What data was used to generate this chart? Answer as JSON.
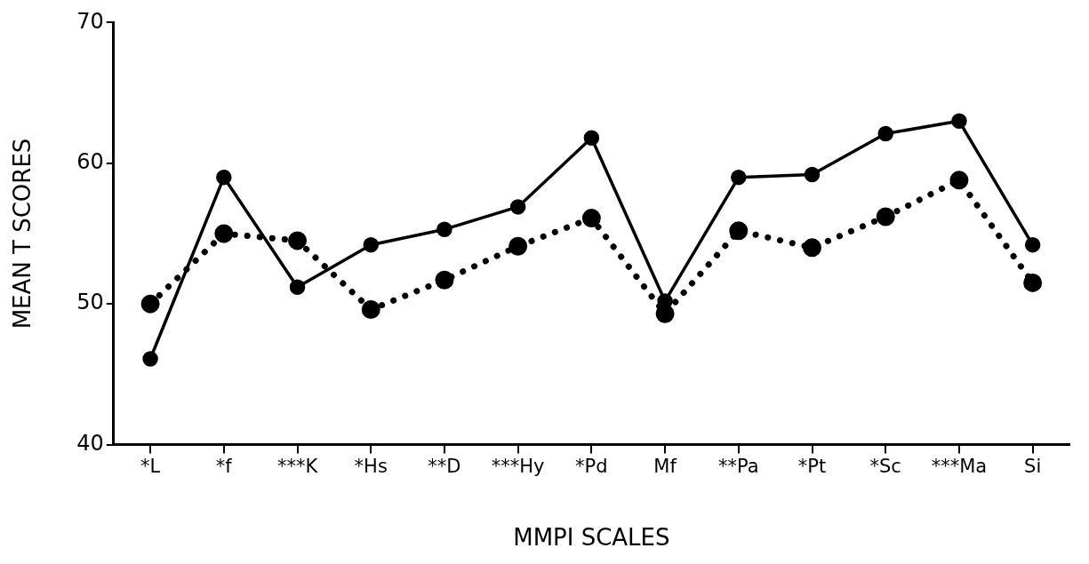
{
  "chart_data": {
    "type": "line",
    "xlabel": "MMPI SCALES",
    "ylabel": "MEAN T SCORES",
    "categories": [
      "*L",
      "*f",
      "***K",
      "*Hs",
      "**D",
      "***Hy",
      "*Pd",
      "Mf",
      "**Pa",
      "*Pt",
      "*Sc",
      "***Ma",
      "Si"
    ],
    "series": [
      {
        "color": "#000000",
        "line_style": "solid",
        "values": [
          46.1,
          59.0,
          51.2,
          54.2,
          55.3,
          56.9,
          61.8,
          50.2,
          59.0,
          59.2,
          62.1,
          63.0,
          54.2
        ]
      },
      {
        "color": "#000000",
        "line_style": "dotted",
        "values": [
          50.0,
          55.0,
          54.5,
          49.6,
          51.7,
          54.1,
          56.1,
          49.3,
          55.2,
          54.0,
          56.2,
          58.8,
          51.5
        ]
      }
    ],
    "ylim": [
      40,
      70
    ],
    "yticks": [
      40,
      50,
      60,
      70
    ],
    "grid": false,
    "legend": false,
    "marker": "circle"
  }
}
